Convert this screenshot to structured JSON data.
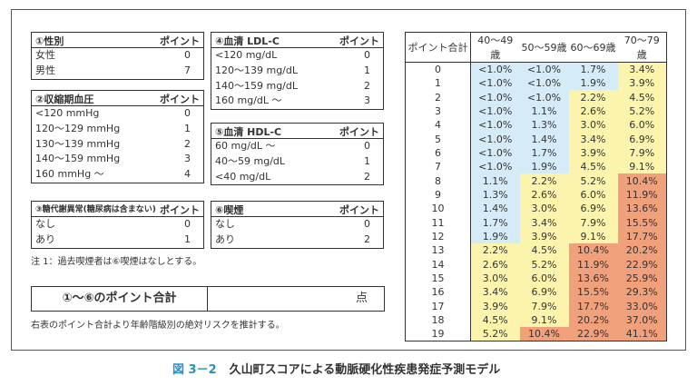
{
  "factors": [
    {
      "title": "①性別",
      "point_label": "ポイント",
      "rows": [
        [
          "女性",
          "0"
        ],
        [
          "男性",
          "7"
        ]
      ]
    },
    {
      "title": "②収縮期血圧",
      "point_label": "ポイント",
      "rows": [
        [
          "<120 mmHg",
          "0"
        ],
        [
          "120〜129 mmHg",
          "1"
        ],
        [
          "130〜139 mmHg",
          "2"
        ],
        [
          "140〜159 mmHg",
          "3"
        ],
        [
          "160 mmHg 〜",
          "4"
        ]
      ]
    },
    {
      "title": "③糖代謝異常(糖尿病は含まない)",
      "point_label": "ポイント",
      "rows": [
        [
          "なし",
          "0"
        ],
        [
          "あり",
          "1"
        ]
      ]
    },
    {
      "title": "④血清 LDL-C",
      "point_label": "ポイント",
      "rows": [
        [
          "<120 mg/dL",
          "0"
        ],
        [
          "120〜139 mg/dL",
          "1"
        ],
        [
          "140〜159 mg/dL",
          "2"
        ],
        [
          "160 mg/dL 〜",
          "3"
        ]
      ]
    },
    {
      "title": "⑤血清 HDL-C",
      "point_label": "ポイント",
      "rows": [
        [
          "60 mg/dL 〜",
          "0"
        ],
        [
          "40〜59 mg/dL",
          "1"
        ],
        [
          "<40 mg/dL",
          "2"
        ]
      ]
    },
    {
      "title": "⑥喫煙",
      "point_label": "ポイント",
      "rows": [
        [
          "なし",
          "0"
        ],
        [
          "あり",
          "2"
        ]
      ]
    }
  ],
  "note1": "注 1：過去喫煙者は⑥喫煙はなしとする。",
  "sum": {
    "label": "①〜⑥のポイント合計",
    "unit": "点"
  },
  "note2": "右表のポイント合計より年齢階級別の絶対リスクを推計する。",
  "risk_table": {
    "headers": [
      "ポイント合計",
      "40〜49歳",
      "50〜59歳",
      "60〜69歳",
      "70〜79歳"
    ],
    "colors": {
      "low": "#d5ebf8",
      "mid": "#fcf4ad",
      "high": "#f1a07c"
    },
    "rows": [
      [
        "0",
        "<1.0%",
        "<1.0%",
        "1.7%",
        "3.4%"
      ],
      [
        "1",
        "<1.0%",
        "<1.0%",
        "1.9%",
        "3.9%"
      ],
      [
        "2",
        "<1.0%",
        "<1.0%",
        "2.2%",
        "4.5%"
      ],
      [
        "3",
        "<1.0%",
        "1.1%",
        "2.6%",
        "5.2%"
      ],
      [
        "4",
        "<1.0%",
        "1.3%",
        "3.0%",
        "6.0%"
      ],
      [
        "5",
        "<1.0%",
        "1.4%",
        "3.4%",
        "6.9%"
      ],
      [
        "6",
        "<1.0%",
        "1.7%",
        "3.9%",
        "7.9%"
      ],
      [
        "7",
        "<1.0%",
        "1.9%",
        "4.5%",
        "9.1%"
      ],
      [
        "8",
        "1.1%",
        "2.2%",
        "5.2%",
        "10.4%"
      ],
      [
        "9",
        "1.3%",
        "2.6%",
        "6.0%",
        "11.9%"
      ],
      [
        "10",
        "1.4%",
        "3.0%",
        "6.9%",
        "13.6%"
      ],
      [
        "11",
        "1.7%",
        "3.4%",
        "7.9%",
        "15.5%"
      ],
      [
        "12",
        "1.9%",
        "3.9%",
        "9.1%",
        "17.7%"
      ],
      [
        "13",
        "2.2%",
        "4.5%",
        "10.4%",
        "20.2%"
      ],
      [
        "14",
        "2.6%",
        "5.2%",
        "11.9%",
        "22.9%"
      ],
      [
        "15",
        "3.0%",
        "6.0%",
        "13.6%",
        "25.9%"
      ],
      [
        "16",
        "3.4%",
        "6.9%",
        "15.5%",
        "29.3%"
      ],
      [
        "17",
        "3.9%",
        "7.9%",
        "17.7%",
        "33.0%"
      ],
      [
        "18",
        "4.5%",
        "9.1%",
        "20.2%",
        "37.0%"
      ],
      [
        "19",
        "5.2%",
        "10.4%",
        "22.9%",
        "41.1%"
      ]
    ]
  },
  "caption": {
    "number": "図 3－2",
    "title": "久山町スコアによる動脈硬化性疾患発症予測モデル"
  }
}
